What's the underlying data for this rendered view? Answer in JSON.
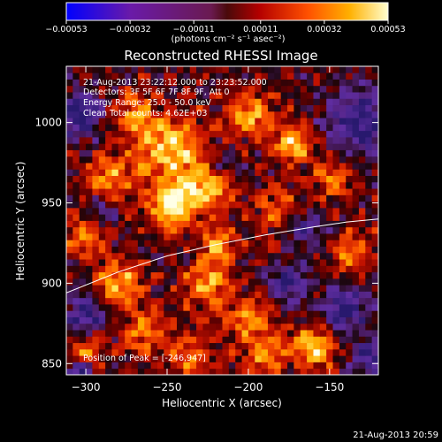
{
  "chart_data": {
    "type": "heatmap",
    "title": "Reconstructed RHESSI Image",
    "xlabel": "Heliocentric X (arcsec)",
    "ylabel": "Heliocentric Y (arcsec)",
    "xlim": [
      -312,
      -120
    ],
    "ylim": [
      843,
      1035
    ],
    "xticks": [
      -300,
      -250,
      -200,
      -150
    ],
    "yticks": [
      850,
      900,
      950,
      1000
    ],
    "xtick_labels": [
      "−300",
      "−250",
      "−200",
      "−150"
    ],
    "yticks_labels": [
      "850",
      "900",
      "950",
      "1000"
    ],
    "colorbar": {
      "min": -0.00053,
      "max": 0.00053,
      "ticks": [
        -0.00053,
        -0.00032,
        -0.00011,
        0.00011,
        0.00032,
        0.00053
      ],
      "tick_labels": [
        "−0.00053",
        "−0.00032",
        "−0.00011",
        "0.00011",
        "0.00032",
        "0.00053"
      ],
      "unit_label": "(photons cm⁻² s⁻¹ asec⁻²)"
    },
    "annotations": [
      "21-Aug-2013 23:22:12.000 to 23:23:52.000",
      "Detectors: 3F 5F 6F 7F 8F 9F, Att 0",
      "Energy Range: 25.0 - 50.0 keV",
      "Clean     Total counts: 4.62E+03"
    ],
    "peak_label": "Position of Peak = [-246,947]",
    "peak": [
      -246,
      947
    ],
    "limb_curve": [
      [
        -312,
        894
      ],
      [
        -280,
        907
      ],
      [
        -250,
        917
      ],
      [
        -220,
        924
      ],
      [
        -190,
        930
      ],
      [
        -160,
        935
      ],
      [
        -140,
        938
      ],
      [
        -120,
        940
      ]
    ],
    "peaks": [
      {
        "x": -247,
        "y": 949,
        "amp": 1.0,
        "r": 10
      },
      {
        "x": -250,
        "y": 985,
        "amp": 0.85,
        "r": 14
      },
      {
        "x": -225,
        "y": 962,
        "amp": 0.8,
        "r": 12
      },
      {
        "x": -200,
        "y": 1005,
        "amp": 0.75,
        "r": 10
      },
      {
        "x": -172,
        "y": 988,
        "amp": 0.9,
        "r": 8
      },
      {
        "x": -270,
        "y": 1005,
        "amp": 0.6,
        "r": 9
      },
      {
        "x": -285,
        "y": 965,
        "amp": 0.65,
        "r": 10
      },
      {
        "x": -300,
        "y": 930,
        "amp": 0.55,
        "r": 9
      },
      {
        "x": -280,
        "y": 900,
        "amp": 0.7,
        "r": 10
      },
      {
        "x": -265,
        "y": 870,
        "amp": 0.6,
        "r": 10
      },
      {
        "x": -225,
        "y": 900,
        "amp": 0.7,
        "r": 10
      },
      {
        "x": -218,
        "y": 925,
        "amp": 0.75,
        "r": 7
      },
      {
        "x": -200,
        "y": 878,
        "amp": 0.6,
        "r": 10
      },
      {
        "x": -160,
        "y": 860,
        "amp": 0.9,
        "r": 9
      },
      {
        "x": -135,
        "y": 918,
        "amp": 0.65,
        "r": 9
      },
      {
        "x": -148,
        "y": 965,
        "amp": 0.55,
        "r": 9
      },
      {
        "x": -180,
        "y": 945,
        "amp": 0.5,
        "r": 10
      },
      {
        "x": -300,
        "y": 860,
        "amp": 0.55,
        "r": 8
      },
      {
        "x": -190,
        "y": 855,
        "amp": 0.6,
        "r": 9
      },
      {
        "x": -235,
        "y": 855,
        "amp": 0.55,
        "r": 9
      }
    ],
    "voids": [
      {
        "x": -305,
        "y": 1005,
        "amp": 1.0,
        "r": 10
      },
      {
        "x": -130,
        "y": 1000,
        "amp": 1.0,
        "r": 14
      },
      {
        "x": -140,
        "y": 885,
        "amp": 0.9,
        "r": 10
      },
      {
        "x": -300,
        "y": 880,
        "amp": 0.9,
        "r": 9
      },
      {
        "x": -175,
        "y": 900,
        "amp": 0.9,
        "r": 8
      },
      {
        "x": -165,
        "y": 935,
        "amp": 0.8,
        "r": 8
      },
      {
        "x": -215,
        "y": 975,
        "amp": 0.7,
        "r": 7
      },
      {
        "x": -125,
        "y": 855,
        "amp": 0.8,
        "r": 8
      },
      {
        "x": -305,
        "y": 845,
        "amp": 0.9,
        "r": 6
      },
      {
        "x": -290,
        "y": 945,
        "amp": 0.6,
        "r": 7
      }
    ]
  },
  "footer": {
    "timestamp": "21-Aug-2013 20:59"
  }
}
